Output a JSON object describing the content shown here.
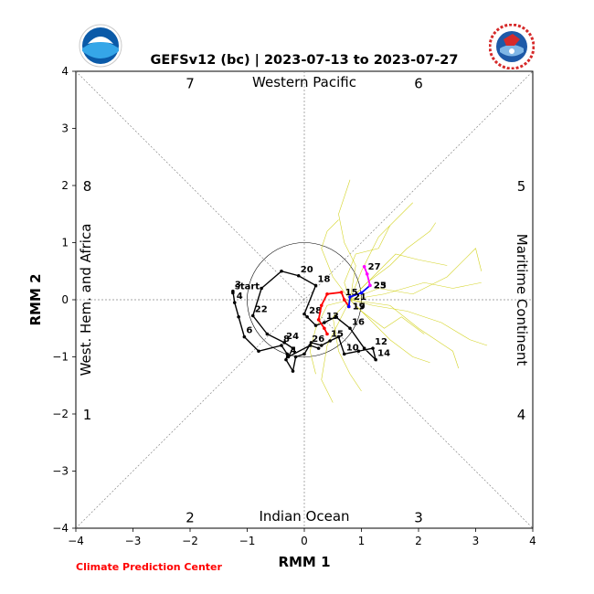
{
  "title": "GEFSv12 (bc) | 2023-07-13 to 2023-07-27",
  "credit": "Climate Prediction Center",
  "logos": {
    "left": "NOAA",
    "right": "NATIONAL WEATHER SERVICE"
  },
  "chart_data": {
    "type": "line",
    "title": "GEFSv12 (bc) | 2023-07-13 to 2023-07-27",
    "xlabel": "RMM 1",
    "ylabel": "RMM 2",
    "xlim": [
      -4,
      4
    ],
    "ylim": [
      -4,
      4
    ],
    "xticks": [
      "−4",
      "−3",
      "−2",
      "−1",
      "0",
      "1",
      "2",
      "3",
      "4"
    ],
    "yticks": [
      "−4",
      "−3",
      "−2",
      "−1",
      "0",
      "1",
      "2",
      "3",
      "4"
    ],
    "grid": "diagonals and axes, dashed",
    "unit_circle_radius": 1,
    "phase_numbers": [
      {
        "label": "1",
        "x": -3.8,
        "y": -2.0
      },
      {
        "label": "2",
        "x": -2.0,
        "y": -3.8
      },
      {
        "label": "3",
        "x": 2.0,
        "y": -3.8
      },
      {
        "label": "4",
        "x": 3.8,
        "y": -2.0
      },
      {
        "label": "5",
        "x": 3.8,
        "y": 2.0
      },
      {
        "label": "6",
        "x": 2.0,
        "y": 3.8
      },
      {
        "label": "7",
        "x": -2.0,
        "y": 3.8
      },
      {
        "label": "8",
        "x": -3.8,
        "y": 2.0
      }
    ],
    "region_labels": {
      "top": "Western Pacific",
      "bottom": "Indian Ocean",
      "left": "West. Hem. and Africa",
      "right": "Maritime Continent"
    },
    "observed": {
      "color": "#000000",
      "points": [
        {
          "x": -1.25,
          "y": 0.12,
          "label": "start"
        },
        {
          "x": -1.25,
          "y": 0.15,
          "label": "3"
        },
        {
          "x": -1.22,
          "y": -0.05,
          "label": "4"
        },
        {
          "x": -1.15,
          "y": -0.3,
          "label": ""
        },
        {
          "x": -1.05,
          "y": -0.65,
          "label": "6"
        },
        {
          "x": -0.8,
          "y": -0.9,
          "label": ""
        },
        {
          "x": -0.4,
          "y": -0.8,
          "label": "8"
        },
        {
          "x": -0.3,
          "y": -0.95,
          "label": ""
        },
        {
          "x": -0.32,
          "y": -1.05,
          "label": ""
        },
        {
          "x": -0.2,
          "y": -1.25,
          "label": ""
        },
        {
          "x": -0.15,
          "y": -1.0,
          "label": ""
        },
        {
          "x": 0.0,
          "y": -0.95,
          "label": ""
        },
        {
          "x": 0.12,
          "y": -0.75,
          "label": ""
        },
        {
          "x": 0.3,
          "y": -0.8,
          "label": ""
        },
        {
          "x": 0.45,
          "y": -0.72,
          "label": ""
        },
        {
          "x": 0.6,
          "y": -0.65,
          "label": ""
        },
        {
          "x": 0.7,
          "y": -0.95,
          "label": "10"
        },
        {
          "x": 0.95,
          "y": -0.9,
          "label": ""
        },
        {
          "x": 1.2,
          "y": -0.85,
          "label": "12"
        },
        {
          "x": 1.25,
          "y": -1.05,
          "label": "14"
        },
        {
          "x": 1.05,
          "y": -0.85,
          "label": ""
        },
        {
          "x": 0.8,
          "y": -0.5,
          "label": "16"
        },
        {
          "x": 0.55,
          "y": -0.3,
          "label": ""
        },
        {
          "x": 0.35,
          "y": -0.4,
          "label": "13"
        },
        {
          "x": 0.2,
          "y": -0.45,
          "label": ""
        },
        {
          "x": 0.05,
          "y": -0.3,
          "label": "28"
        },
        {
          "x": 0.0,
          "y": -0.25,
          "label": ""
        },
        {
          "x": 0.2,
          "y": 0.25,
          "label": "18"
        },
        {
          "x": -0.1,
          "y": 0.42,
          "label": "20"
        },
        {
          "x": -0.4,
          "y": 0.5,
          "label": ""
        },
        {
          "x": -0.75,
          "y": 0.2,
          "label": ""
        },
        {
          "x": -0.9,
          "y": -0.28,
          "label": "22"
        },
        {
          "x": -0.65,
          "y": -0.6,
          "label": ""
        },
        {
          "x": -0.35,
          "y": -0.75,
          "label": "24"
        },
        {
          "x": -0.2,
          "y": -0.85,
          "label": ""
        },
        {
          "x": -0.28,
          "y": -1.0,
          "label": "4"
        },
        {
          "x": 0.1,
          "y": -0.8,
          "label": "26"
        },
        {
          "x": 0.25,
          "y": -0.85,
          "label": ""
        }
      ]
    },
    "forecast_segments": [
      {
        "name": "",
        "color": "#ff0000",
        "points": [
          {
            "x": 0.4,
            "y": -0.6,
            "label": "15"
          },
          {
            "x": 0.35,
            "y": -0.5,
            "label": ""
          },
          {
            "x": 0.25,
            "y": -0.35,
            "label": ""
          },
          {
            "x": 0.3,
            "y": -0.1,
            "label": ""
          },
          {
            "x": 0.4,
            "y": 0.1,
            "label": ""
          },
          {
            "x": 0.65,
            "y": 0.13,
            "label": "15"
          },
          {
            "x": 0.7,
            "y": 0.0,
            "label": ""
          },
          {
            "x": 0.78,
            "y": -0.12,
            "label": "17"
          }
        ]
      },
      {
        "name": "",
        "color": "#0000ff",
        "points": [
          {
            "x": 0.78,
            "y": -0.12,
            "label": "19"
          },
          {
            "x": 0.8,
            "y": 0.05,
            "label": "21"
          },
          {
            "x": 1.0,
            "y": 0.12,
            "label": ""
          },
          {
            "x": 1.15,
            "y": 0.25,
            "label": "23"
          }
        ]
      },
      {
        "name": "",
        "color": "#ff00ff",
        "points": [
          {
            "x": 1.15,
            "y": 0.25,
            "label": "25"
          },
          {
            "x": 1.1,
            "y": 0.45,
            "label": ""
          },
          {
            "x": 1.05,
            "y": 0.58,
            "label": "27"
          }
        ]
      }
    ],
    "ensemble_color": "#cccc00",
    "ensemble_members": [
      [
        [
          0.8,
          0.0
        ],
        [
          1.1,
          0.3
        ],
        [
          1.5,
          0.6
        ],
        [
          1.8,
          0.9
        ],
        [
          2.2,
          1.2
        ],
        [
          2.3,
          1.35
        ]
      ],
      [
        [
          0.8,
          0.0
        ],
        [
          1.2,
          -0.1
        ],
        [
          1.8,
          -0.2
        ],
        [
          2.4,
          -0.4
        ],
        [
          2.9,
          -0.7
        ],
        [
          3.2,
          -0.8
        ]
      ],
      [
        [
          0.8,
          0.0
        ],
        [
          1.3,
          0.2
        ],
        [
          1.9,
          0.1
        ],
        [
          2.5,
          0.4
        ],
        [
          3.0,
          0.9
        ],
        [
          3.1,
          0.5
        ]
      ],
      [
        [
          0.8,
          0.0
        ],
        [
          1.0,
          0.5
        ],
        [
          1.3,
          1.1
        ],
        [
          1.7,
          1.5
        ],
        [
          1.9,
          1.7
        ]
      ],
      [
        [
          0.8,
          0.0
        ],
        [
          1.1,
          -0.3
        ],
        [
          1.5,
          -0.7
        ],
        [
          1.9,
          -1.0
        ],
        [
          2.2,
          -1.1
        ]
      ],
      [
        [
          0.8,
          0.0
        ],
        [
          0.6,
          -0.4
        ],
        [
          0.4,
          -0.8
        ],
        [
          0.3,
          -1.4
        ],
        [
          0.5,
          -1.8
        ]
      ],
      [
        [
          0.8,
          0.0
        ],
        [
          0.5,
          0.4
        ],
        [
          0.3,
          0.9
        ],
        [
          0.4,
          1.2
        ],
        [
          0.6,
          1.4
        ]
      ],
      [
        [
          0.8,
          0.0
        ],
        [
          1.4,
          0.1
        ],
        [
          2.1,
          0.3
        ],
        [
          2.6,
          0.2
        ],
        [
          3.1,
          0.3
        ]
      ],
      [
        [
          0.8,
          0.0
        ],
        [
          1.0,
          -0.2
        ],
        [
          1.4,
          -0.5
        ],
        [
          1.7,
          -0.3
        ],
        [
          2.1,
          -0.6
        ]
      ],
      [
        [
          0.8,
          0.0
        ],
        [
          0.9,
          0.6
        ],
        [
          0.7,
          1.0
        ],
        [
          0.6,
          1.5
        ],
        [
          0.8,
          2.1
        ]
      ],
      [
        [
          0.8,
          0.0
        ],
        [
          0.4,
          -0.1
        ],
        [
          0.2,
          -0.5
        ],
        [
          0.1,
          -0.9
        ],
        [
          0.2,
          -1.3
        ]
      ],
      [
        [
          0.8,
          0.0
        ],
        [
          1.2,
          0.4
        ],
        [
          1.6,
          0.8
        ],
        [
          2.0,
          0.7
        ],
        [
          2.5,
          0.6
        ]
      ],
      [
        [
          0.8,
          0.0
        ],
        [
          1.5,
          -0.1
        ],
        [
          2.0,
          -0.5
        ],
        [
          2.6,
          -0.9
        ],
        [
          2.7,
          -1.2
        ]
      ],
      [
        [
          0.8,
          0.0
        ],
        [
          0.7,
          0.3
        ],
        [
          0.9,
          0.8
        ],
        [
          1.3,
          0.9
        ],
        [
          1.5,
          1.3
        ]
      ],
      [
        [
          0.8,
          0.0
        ],
        [
          0.5,
          -0.3
        ],
        [
          0.6,
          -0.9
        ],
        [
          0.8,
          -1.3
        ],
        [
          1.0,
          -1.6
        ]
      ]
    ]
  }
}
